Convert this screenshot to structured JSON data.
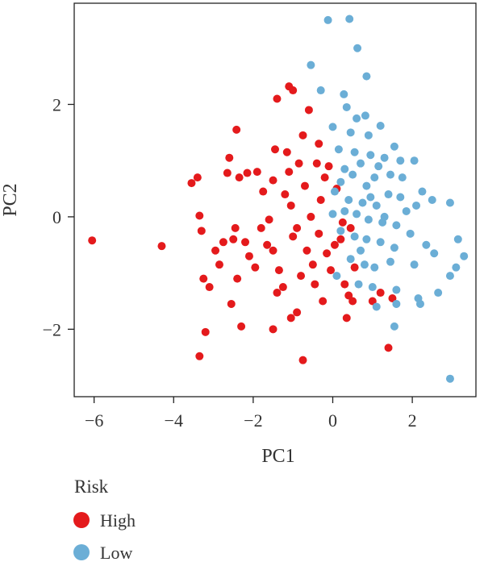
{
  "chart_data": {
    "type": "scatter",
    "xlabel": "PC1",
    "ylabel": "PC2",
    "xlim": [
      -6.5,
      3.6
    ],
    "ylim": [
      -3.2,
      3.8
    ],
    "xticks": [
      -6,
      -4,
      -2,
      0,
      2
    ],
    "yticks": [
      -2,
      0,
      2
    ],
    "xtick_labels": [
      "−6",
      "−4",
      "−2",
      "0",
      "2"
    ],
    "ytick_labels": [
      "−2",
      "0",
      "2"
    ],
    "grid": false,
    "legend": {
      "title": "Risk",
      "position": "bottom-left",
      "entries": [
        {
          "label": "High",
          "color": "#e41a1c"
        },
        {
          "label": "Low",
          "color": "#6baed6"
        }
      ]
    },
    "series": [
      {
        "name": "High",
        "color": "#e41a1c",
        "points": [
          [
            -6.05,
            -0.42
          ],
          [
            -4.3,
            -0.52
          ],
          [
            -3.55,
            0.6
          ],
          [
            -3.4,
            0.7
          ],
          [
            -3.35,
            0.02
          ],
          [
            -3.3,
            -0.25
          ],
          [
            -3.25,
            -1.1
          ],
          [
            -3.1,
            -1.25
          ],
          [
            -3.2,
            -2.05
          ],
          [
            -3.35,
            -2.48
          ],
          [
            -2.95,
            -0.6
          ],
          [
            -2.55,
            -1.55
          ],
          [
            -2.65,
            0.78
          ],
          [
            -2.6,
            1.05
          ],
          [
            -2.42,
            1.55
          ],
          [
            -2.35,
            0.7
          ],
          [
            -2.5,
            -0.4
          ],
          [
            -2.45,
            -0.2
          ],
          [
            -2.4,
            -1.1
          ],
          [
            -2.3,
            -1.95
          ],
          [
            -2.15,
            0.78
          ],
          [
            -2.2,
            -0.45
          ],
          [
            -1.9,
            0.8
          ],
          [
            -1.95,
            -0.9
          ],
          [
            -2.1,
            -0.7
          ],
          [
            -1.8,
            -0.2
          ],
          [
            -1.75,
            0.45
          ],
          [
            -1.6,
            -0.05
          ],
          [
            -1.5,
            0.65
          ],
          [
            -1.45,
            1.2
          ],
          [
            -1.4,
            2.1
          ],
          [
            -1.5,
            -0.6
          ],
          [
            -1.35,
            -0.95
          ],
          [
            -1.4,
            -1.35
          ],
          [
            -1.5,
            -2.0
          ],
          [
            -1.25,
            -1.25
          ],
          [
            -1.2,
            0.4
          ],
          [
            -1.15,
            1.15
          ],
          [
            -1.1,
            0.8
          ],
          [
            -1.05,
            0.2
          ],
          [
            -1.0,
            -0.35
          ],
          [
            -1.1,
            2.32
          ],
          [
            -1.0,
            2.25
          ],
          [
            -0.9,
            -0.2
          ],
          [
            -0.85,
            0.95
          ],
          [
            -0.8,
            -1.05
          ],
          [
            -0.75,
            1.45
          ],
          [
            -0.7,
            0.55
          ],
          [
            -0.65,
            -0.6
          ],
          [
            -0.6,
            1.9
          ],
          [
            -0.55,
            0.0
          ],
          [
            -0.5,
            -0.85
          ],
          [
            -0.45,
            -1.2
          ],
          [
            -0.4,
            0.95
          ],
          [
            -0.35,
            -0.3
          ],
          [
            -0.3,
            0.3
          ],
          [
            -0.25,
            -1.5
          ],
          [
            -0.2,
            0.7
          ],
          [
            -0.15,
            -0.65
          ],
          [
            -0.1,
            0.9
          ],
          [
            -0.05,
            -0.95
          ],
          [
            0.05,
            -0.5
          ],
          [
            0.1,
            0.5
          ],
          [
            0.2,
            -0.4
          ],
          [
            0.25,
            -0.1
          ],
          [
            0.3,
            -1.2
          ],
          [
            0.35,
            -1.8
          ],
          [
            0.4,
            -1.4
          ],
          [
            0.45,
            -0.2
          ],
          [
            0.5,
            -1.5
          ],
          [
            0.55,
            -0.9
          ],
          [
            1.0,
            -1.5
          ],
          [
            1.2,
            -1.35
          ],
          [
            1.4,
            -2.33
          ],
          [
            1.5,
            -1.45
          ],
          [
            -1.05,
            -1.8
          ],
          [
            -0.75,
            -2.55
          ],
          [
            -0.9,
            -1.7
          ],
          [
            -1.65,
            -0.5
          ],
          [
            -2.85,
            -0.85
          ],
          [
            -2.75,
            -0.45
          ],
          [
            -0.35,
            1.3
          ]
        ]
      },
      {
        "name": "Low",
        "color": "#6baed6",
        "points": [
          [
            -0.12,
            3.5
          ],
          [
            0.42,
            3.52
          ],
          [
            0.62,
            3.0
          ],
          [
            -0.55,
            2.7
          ],
          [
            0.85,
            2.5
          ],
          [
            -0.3,
            2.25
          ],
          [
            0.28,
            2.18
          ],
          [
            0.35,
            1.95
          ],
          [
            0.6,
            1.75
          ],
          [
            0.82,
            1.8
          ],
          [
            1.2,
            1.62
          ],
          [
            0.0,
            1.6
          ],
          [
            0.45,
            1.5
          ],
          [
            0.9,
            1.45
          ],
          [
            0.15,
            1.2
          ],
          [
            0.55,
            1.15
          ],
          [
            0.95,
            1.1
          ],
          [
            1.3,
            1.05
          ],
          [
            1.55,
            1.25
          ],
          [
            1.7,
            1.0
          ],
          [
            2.05,
            1.0
          ],
          [
            0.3,
            0.85
          ],
          [
            0.7,
            0.95
          ],
          [
            1.05,
            0.7
          ],
          [
            1.45,
            0.75
          ],
          [
            1.75,
            0.7
          ],
          [
            2.25,
            0.45
          ],
          [
            0.5,
            0.75
          ],
          [
            0.85,
            0.55
          ],
          [
            1.15,
            0.9
          ],
          [
            0.05,
            0.45
          ],
          [
            0.4,
            0.3
          ],
          [
            0.75,
            0.25
          ],
          [
            1.1,
            0.2
          ],
          [
            1.4,
            0.4
          ],
          [
            1.85,
            0.1
          ],
          [
            2.1,
            0.2
          ],
          [
            2.5,
            0.3
          ],
          [
            2.95,
            0.25
          ],
          [
            0.0,
            0.05
          ],
          [
            0.3,
            0.1
          ],
          [
            0.6,
            0.05
          ],
          [
            0.9,
            -0.05
          ],
          [
            1.25,
            -0.1
          ],
          [
            1.6,
            -0.15
          ],
          [
            1.95,
            -0.3
          ],
          [
            0.2,
            -0.25
          ],
          [
            0.55,
            -0.35
          ],
          [
            0.85,
            -0.4
          ],
          [
            1.2,
            -0.45
          ],
          [
            1.55,
            -0.55
          ],
          [
            2.35,
            -0.5
          ],
          [
            3.15,
            -0.4
          ],
          [
            3.3,
            -0.7
          ],
          [
            0.45,
            -0.75
          ],
          [
            0.8,
            -0.85
          ],
          [
            1.05,
            -0.9
          ],
          [
            1.45,
            -0.8
          ],
          [
            2.05,
            -0.85
          ],
          [
            2.55,
            -0.65
          ],
          [
            3.1,
            -0.9
          ],
          [
            0.1,
            -1.05
          ],
          [
            0.65,
            -1.2
          ],
          [
            1.0,
            -1.25
          ],
          [
            1.6,
            -1.3
          ],
          [
            2.15,
            -1.45
          ],
          [
            2.65,
            -1.35
          ],
          [
            2.95,
            -1.05
          ],
          [
            1.1,
            -1.6
          ],
          [
            1.6,
            -1.55
          ],
          [
            2.2,
            -1.55
          ],
          [
            1.55,
            -1.95
          ],
          [
            2.95,
            -2.88
          ],
          [
            1.3,
            0.0
          ],
          [
            0.95,
            0.35
          ],
          [
            0.2,
            0.62
          ],
          [
            1.7,
            0.35
          ],
          [
            0.7,
            -0.6
          ]
        ]
      }
    ]
  }
}
